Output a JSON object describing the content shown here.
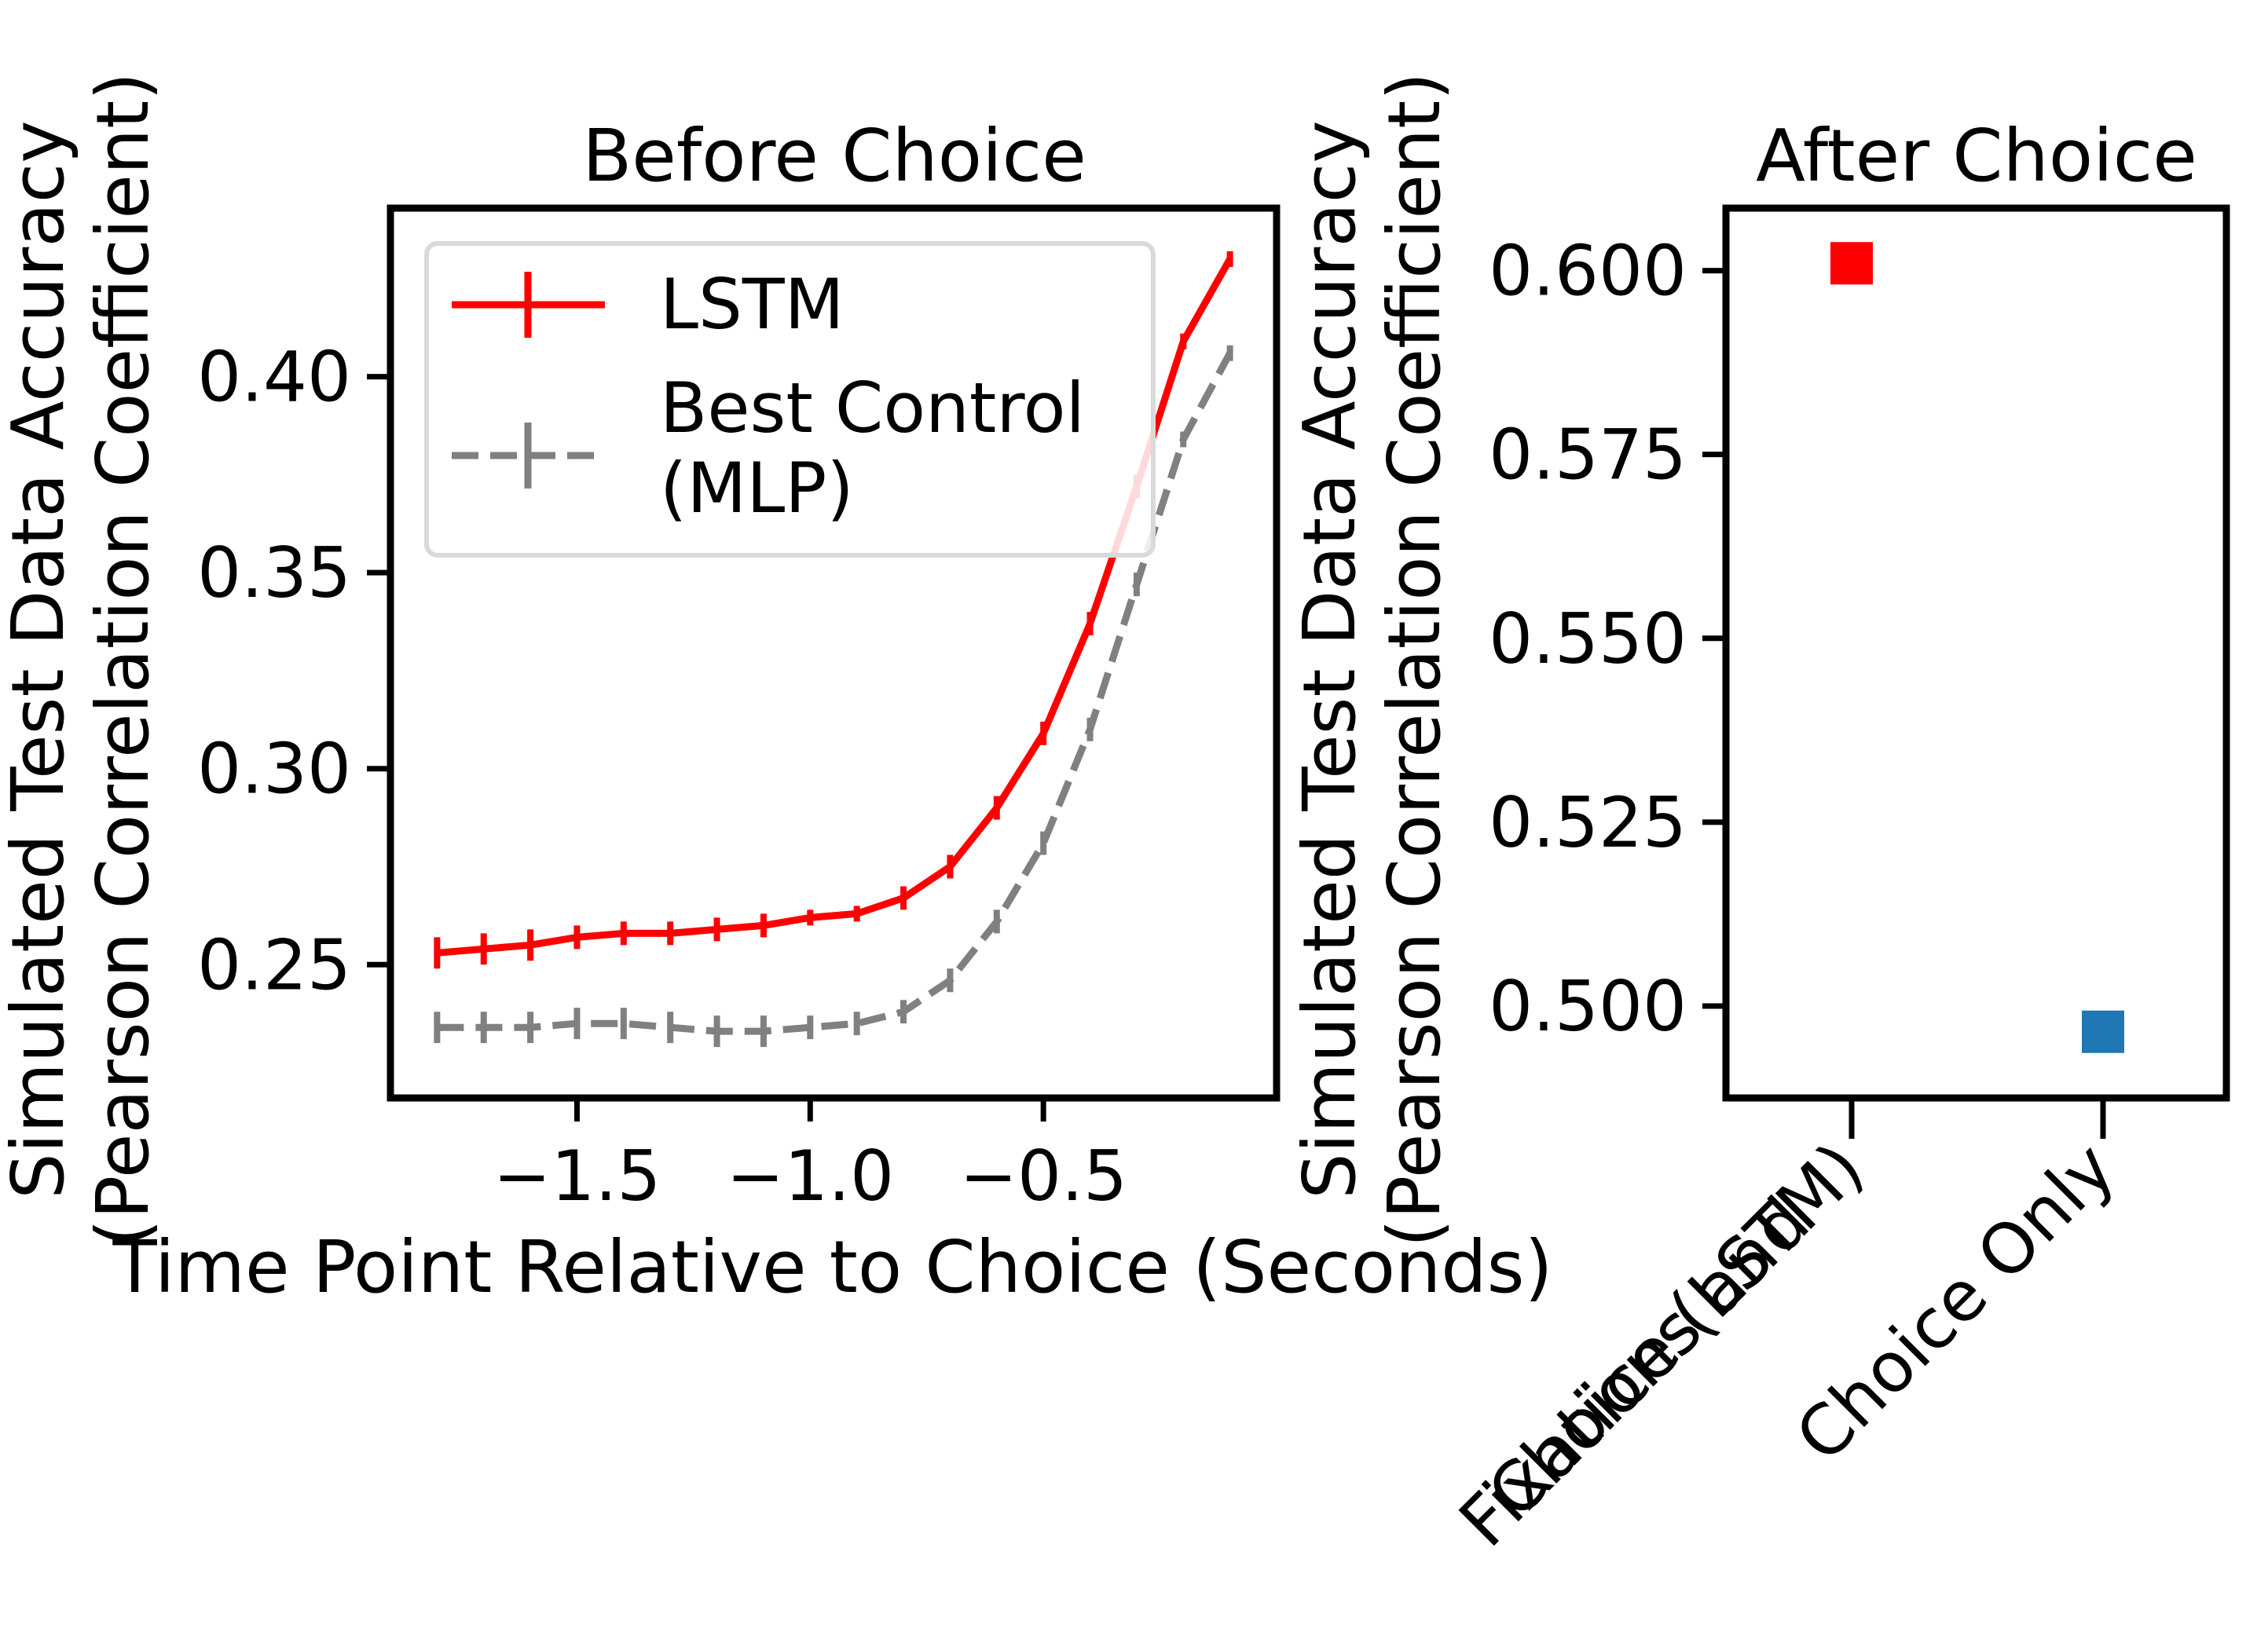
{
  "chart_data": [
    {
      "type": "line",
      "title": "Before Choice",
      "xlabel": "Time Point Relative to Choice (Seconds)",
      "ylabel_lines": [
        "Simulated Test Data Accuracy",
        "(Pearson Correlation Coefficient)"
      ],
      "xlim": [
        -1.9,
        0.0
      ],
      "ylim": [
        0.216,
        0.443
      ],
      "xticks": [
        -1.5,
        -1.0,
        -0.5
      ],
      "xtick_labels": [
        "−1.5",
        "−1.0",
        "−0.5"
      ],
      "yticks": [
        0.25,
        0.3,
        0.35,
        0.4
      ],
      "ytick_labels": [
        "0.25",
        "0.30",
        "0.35",
        "0.40"
      ],
      "x": [
        -1.8,
        -1.7,
        -1.6,
        -1.5,
        -1.4,
        -1.3,
        -1.2,
        -1.1,
        -1.0,
        -0.9,
        -0.8,
        -0.7,
        -0.6,
        -0.5,
        -0.4,
        -0.3,
        -0.2,
        -0.1
      ],
      "series": [
        {
          "name": "LSTM",
          "color": "#ff0000",
          "dash": "solid",
          "values": [
            0.253,
            0.254,
            0.255,
            0.257,
            0.258,
            0.258,
            0.259,
            0.26,
            0.262,
            0.263,
            0.267,
            0.275,
            0.29,
            0.309,
            0.337,
            0.372,
            0.409,
            0.43
          ],
          "errors": [
            0.004,
            0.004,
            0.004,
            0.003,
            0.003,
            0.003,
            0.003,
            0.003,
            0.002,
            0.002,
            0.003,
            0.003,
            0.003,
            0.003,
            0.003,
            0.003,
            0.002,
            0.002
          ]
        },
        {
          "name": "Best Control\n(MLP)",
          "color": "#808080",
          "dash": "dashed",
          "values": [
            0.234,
            0.234,
            0.234,
            0.235,
            0.235,
            0.234,
            0.233,
            0.233,
            0.234,
            0.235,
            0.238,
            0.246,
            0.261,
            0.281,
            0.31,
            0.347,
            0.384,
            0.406
          ],
          "errors": [
            0.004,
            0.004,
            0.004,
            0.004,
            0.004,
            0.004,
            0.004,
            0.004,
            0.003,
            0.003,
            0.003,
            0.003,
            0.003,
            0.003,
            0.003,
            0.003,
            0.002,
            0.002
          ]
        }
      ],
      "legend": {
        "placement": "upper-left",
        "entries": [
          {
            "label_lines": [
              "LSTM"
            ]
          },
          {
            "label_lines": [
              "Best Control",
              "(MLP)"
            ]
          }
        ]
      }
    },
    {
      "type": "scatter",
      "title": "After Choice",
      "ylabel_lines": [
        "Simulated Test Data Accuracy",
        "(Pearson Correlation Coefficient)"
      ],
      "ylim": [
        0.4875,
        0.6085
      ],
      "yticks": [
        0.5,
        0.525,
        0.55,
        0.575,
        0.6
      ],
      "ytick_labels": [
        "0.500",
        "0.525",
        "0.550",
        "0.575",
        "0.600"
      ],
      "categories": [
        {
          "label_lines": [
            "Fixations and",
            "Choice (LSTM)"
          ]
        },
        {
          "label_lines": [
            "Choice Only"
          ]
        }
      ],
      "points": [
        {
          "category_index": 0,
          "value": 0.601,
          "color": "#ff0000"
        },
        {
          "category_index": 1,
          "value": 0.4965,
          "color": "#1f77b4"
        }
      ]
    }
  ]
}
